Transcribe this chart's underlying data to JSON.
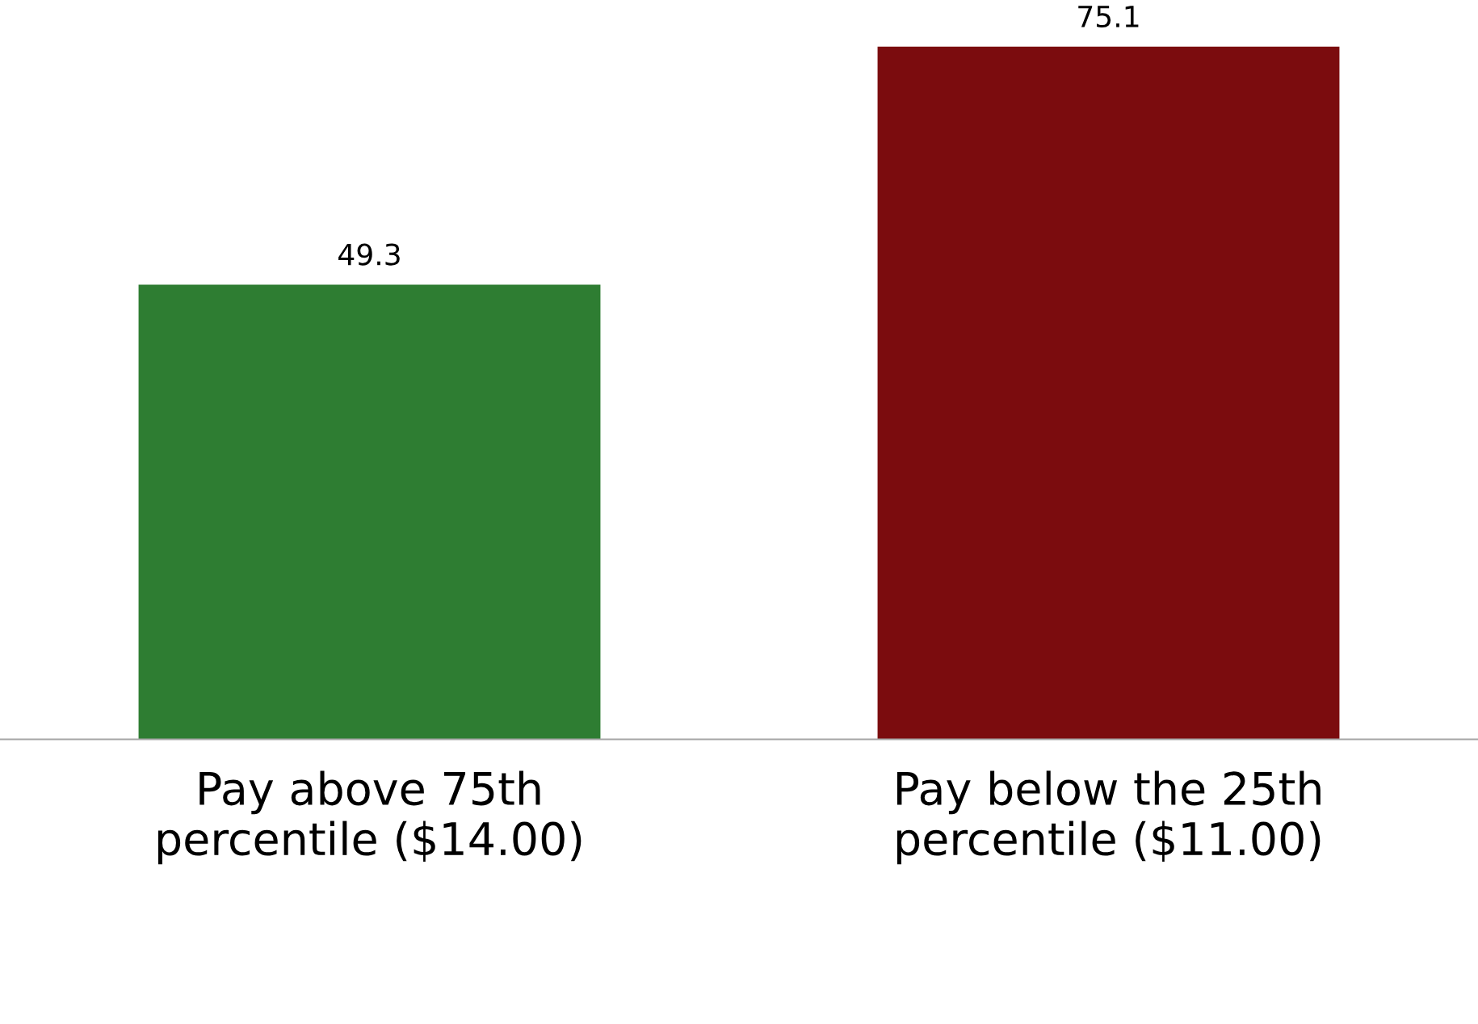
{
  "chart_data": {
    "type": "bar",
    "categories": [
      "Pay above 75th percentile ($14.00)",
      "Pay below the 25th percentile ($11.00)"
    ],
    "values": [
      49.3,
      75.1
    ],
    "colors": [
      "#2e7d32",
      "#7b0c0e"
    ],
    "data_labels": true,
    "grid": false,
    "legend": false
  }
}
